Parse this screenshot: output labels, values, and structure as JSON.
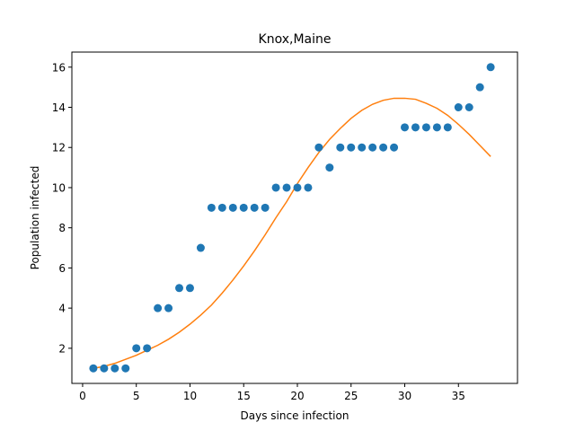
{
  "chart_data": {
    "type": "scatter",
    "title": "Knox,Maine",
    "xlabel": "Days since infection",
    "ylabel": "Population infected",
    "xlim": [
      -1,
      40.5
    ],
    "ylim": [
      0.25,
      16.75
    ],
    "xticks": [
      0,
      5,
      10,
      15,
      20,
      25,
      30,
      35
    ],
    "yticks": [
      2,
      4,
      6,
      8,
      10,
      12,
      14,
      16
    ],
    "grid": false,
    "colors": {
      "points": "#1f77b4",
      "fit": "#ff7f0e"
    },
    "series": [
      {
        "type": "scatter",
        "x": [
          1,
          2,
          3,
          4,
          5,
          6,
          7,
          8,
          9,
          10,
          11,
          12,
          13,
          14,
          15,
          16,
          17,
          18,
          19,
          20,
          21,
          22,
          23,
          24,
          25,
          26,
          27,
          28,
          29,
          30,
          31,
          32,
          33,
          34,
          35,
          36,
          37,
          38
        ],
        "y": [
          1,
          1,
          1,
          1,
          2,
          2,
          4,
          4,
          5,
          5,
          7,
          9,
          9,
          9,
          9,
          9,
          9,
          10,
          10,
          10,
          10,
          12,
          11,
          12,
          12,
          12,
          12,
          12,
          12,
          13,
          13,
          13,
          13,
          13,
          14,
          14,
          15,
          16
        ]
      },
      {
        "type": "line",
        "x": [
          1,
          2,
          3,
          4,
          5,
          6,
          7,
          8,
          9,
          10,
          11,
          12,
          13,
          14,
          15,
          16,
          17,
          18,
          19,
          20,
          21,
          22,
          23,
          24,
          25,
          26,
          27,
          28,
          29,
          30,
          31,
          32,
          33,
          34,
          35,
          36,
          37,
          38
        ],
        "y": [
          1.0,
          1.1,
          1.25,
          1.45,
          1.65,
          1.9,
          2.15,
          2.45,
          2.8,
          3.2,
          3.65,
          4.15,
          4.75,
          5.4,
          6.1,
          6.85,
          7.65,
          8.5,
          9.3,
          10.2,
          11.0,
          11.75,
          12.4,
          12.95,
          13.45,
          13.85,
          14.15,
          14.35,
          14.45,
          14.45,
          14.4,
          14.2,
          13.95,
          13.6,
          13.15,
          12.65,
          12.1,
          11.55
        ]
      }
    ]
  }
}
